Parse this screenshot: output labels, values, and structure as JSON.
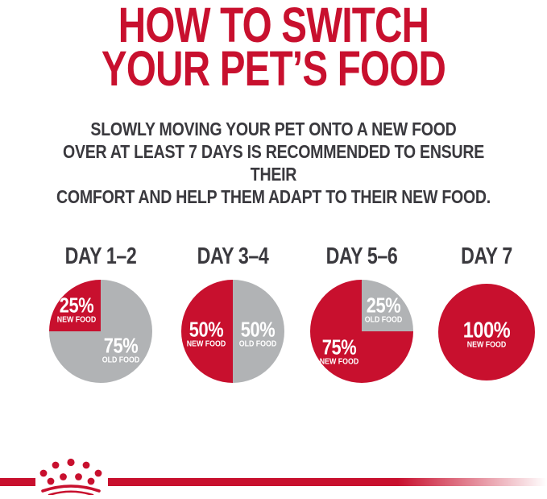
{
  "title": {
    "line1": "HOW TO SWITCH",
    "line2": "YOUR PET’S FOOD"
  },
  "subtitle": {
    "line1": "SLOWLY MOVING YOUR PET ONTO A NEW FOOD",
    "line2": "OVER AT LEAST 7 DAYS IS RECOMMENDED TO ENSURE THEIR",
    "line3": "COMFORT AND HELP THEM ADAPT TO THEIR NEW FOOD."
  },
  "colors": {
    "brand_red": "#C8102E",
    "old_food_gray": "#B1B3B5",
    "text_dark": "#3A393E",
    "label_white": "#FFFFFF"
  },
  "chart_data": [
    {
      "type": "pie",
      "title": "DAY 1–2",
      "slices": [
        {
          "name": "NEW FOOD",
          "value_pct": 25,
          "value_label": "25%",
          "color": "#C8102E",
          "label_offset": {
            "x": -30,
            "y": -26
          }
        },
        {
          "name": "OLD FOOD",
          "value_pct": 75,
          "value_label": "75%",
          "color": "#B1B3B5",
          "label_offset": {
            "x": 25,
            "y": 24
          }
        }
      ]
    },
    {
      "type": "pie",
      "title": "DAY 3–4",
      "slices": [
        {
          "name": "NEW FOOD",
          "value_pct": 50,
          "value_label": "50%",
          "color": "#C8102E",
          "label_offset": {
            "x": -33,
            "y": 4
          }
        },
        {
          "name": "OLD FOOD",
          "value_pct": 50,
          "value_label": "50%",
          "color": "#B1B3B5",
          "label_offset": {
            "x": 31,
            "y": 4
          }
        }
      ]
    },
    {
      "type": "pie",
      "title": "DAY 5–6",
      "slices": [
        {
          "name": "NEW FOOD",
          "value_pct": 75,
          "value_label": "75%",
          "color": "#C8102E",
          "label_offset": {
            "x": -28,
            "y": 26
          }
        },
        {
          "name": "OLD FOOD",
          "value_pct": 25,
          "value_label": "25%",
          "color": "#B1B3B5",
          "label_offset": {
            "x": 27,
            "y": -26
          }
        }
      ]
    },
    {
      "type": "pie",
      "title": "DAY 7",
      "slices": [
        {
          "name": "NEW FOOD",
          "value_pct": 100,
          "value_label": "100%",
          "color": "#C8102E",
          "label_offset": {
            "x": 0,
            "y": 3
          }
        }
      ]
    }
  ],
  "footer": {
    "logo": "royal-canin-crown"
  }
}
